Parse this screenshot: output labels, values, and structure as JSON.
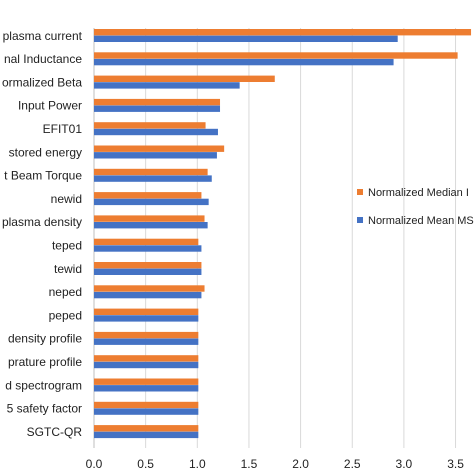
{
  "chart_data": {
    "type": "bar",
    "orientation": "horizontal",
    "categories": [
      "plasma current",
      "nal Inductance",
      "ormalized Beta",
      "Input Power",
      "EFIT01",
      "stored energy",
      "t Beam Torque",
      "newid",
      "plasma density",
      "teped",
      "tewid",
      "neped",
      "peped",
      "density profile",
      "prature profile",
      "d spectrogram",
      "5 safety factor",
      "SGTC-QR"
    ],
    "series": [
      {
        "name": "Normalized  Median I",
        "color": "#ED7D31",
        "values": [
          3.65,
          3.52,
          1.75,
          1.22,
          1.08,
          1.26,
          1.1,
          1.04,
          1.07,
          1.01,
          1.04,
          1.07,
          1.01,
          1.01,
          1.01,
          1.01,
          1.01,
          1.01
        ]
      },
      {
        "name": "Normalized Mean MS",
        "color": "#4472C4",
        "values": [
          2.94,
          2.9,
          1.41,
          1.22,
          1.2,
          1.19,
          1.14,
          1.11,
          1.1,
          1.04,
          1.04,
          1.04,
          1.01,
          1.01,
          1.01,
          1.01,
          1.01,
          1.01
        ]
      }
    ],
    "xticks": [
      "0.0",
      "0.5",
      "1.0",
      "1.5",
      "2.0",
      "2.5",
      "3.0",
      "3.5"
    ],
    "xlim": [
      0,
      3.6
    ],
    "grid": "vertical",
    "legend": "right"
  }
}
